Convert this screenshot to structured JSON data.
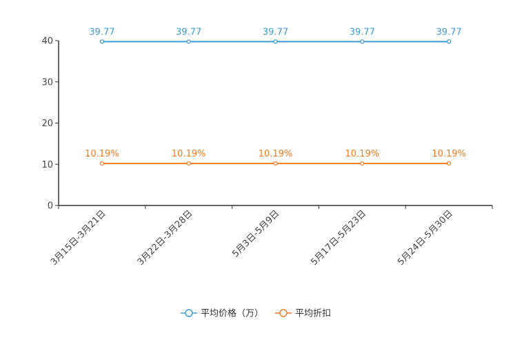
{
  "chart_data": {
    "type": "line",
    "categories": [
      "3月15日-3月21日",
      "3月22日-3月28日",
      "5月3日-5月9日",
      "5月17日-5月23日",
      "5月24日-5月30日"
    ],
    "ylim": [
      0,
      40
    ],
    "yticks": [
      0,
      10,
      20,
      30,
      40
    ],
    "series": [
      {
        "name": "平均价格（万）",
        "values": [
          39.77,
          39.77,
          39.77,
          39.77,
          39.77
        ],
        "labels": [
          "39.77",
          "39.77",
          "39.77",
          "39.77",
          "39.77"
        ],
        "color": "#3d9bd4"
      },
      {
        "name": "平均折扣",
        "values": [
          10.19,
          10.19,
          10.19,
          10.19,
          10.19
        ],
        "labels": [
          "10.19%",
          "10.19%",
          "10.19%",
          "10.19%",
          "10.19%"
        ],
        "color": "#f67a1e"
      }
    ],
    "legend_position": "bottom-center"
  }
}
